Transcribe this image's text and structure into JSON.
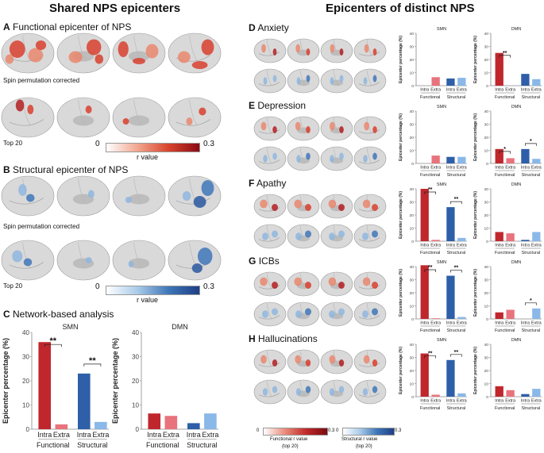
{
  "headers": {
    "left": "Shared NPS epicenters",
    "right": "Epicenters of distinct NPS"
  },
  "panel_A": {
    "letter": "A",
    "title": "Functional epicenter of NPS",
    "note1": "Spin permutation corrected",
    "note2": "Top 20"
  },
  "panel_B": {
    "letter": "B",
    "title": "Structural epicenter of NPS",
    "note1": "Spin permutation corrected",
    "note2": "Top 20"
  },
  "panel_C": {
    "letter": "C",
    "title": "Network-based analysis"
  },
  "colorbar_func": {
    "min": "0",
    "max": "0.3",
    "label": "r value"
  },
  "colorbar_struct": {
    "min": "0",
    "max": "0.3",
    "label": "r value"
  },
  "bottom_colorbars": {
    "func": {
      "min": "0",
      "max": "0.3",
      "label1": "Functional r value",
      "label2": "(top 20)"
    },
    "struct": {
      "min": "0",
      "max": "0.3",
      "label1": "Structural r value",
      "label2": "(top 20)"
    }
  },
  "colors": {
    "func_intra": "#c0272d",
    "func_extra": "#e8737d",
    "struct_intra": "#2e5fa8",
    "struct_extra": "#8ab8e8",
    "brain": "#d9d9d9"
  },
  "symptoms": [
    {
      "letter": "D",
      "name": "Anxiety"
    },
    {
      "letter": "E",
      "name": "Depression"
    },
    {
      "letter": "F",
      "name": "Apathy"
    },
    {
      "letter": "G",
      "name": "ICBs"
    },
    {
      "letter": "H",
      "name": "Hallucinations"
    }
  ],
  "chart_data": [
    {
      "id": "C-SMN",
      "type": "bar",
      "title": "SMN",
      "ylabel": "Epicenter percentage (%)",
      "ylim": [
        0,
        40
      ],
      "yticks": [
        "0",
        "10",
        "20",
        "30",
        "40"
      ],
      "categories": [
        "Intra",
        "Extra",
        "Intra",
        "Extra"
      ],
      "groups": [
        "Functional",
        "Structural"
      ],
      "values": [
        36,
        2,
        23,
        3
      ],
      "sig": [
        {
          "from": 0,
          "to": 1,
          "label": "**"
        },
        {
          "from": 2,
          "to": 3,
          "label": "**"
        }
      ]
    },
    {
      "id": "C-DMN",
      "type": "bar",
      "title": "DMN",
      "ylabel": "Epicenter percentage (%)",
      "ylim": [
        0,
        40
      ],
      "yticks": [
        "0",
        "10",
        "20",
        "30",
        "40"
      ],
      "categories": [
        "Intra",
        "Extra",
        "Intra",
        "Extra"
      ],
      "groups": [
        "Functional",
        "Structural"
      ],
      "values": [
        6.5,
        5.5,
        2.5,
        6.5
      ],
      "sig": []
    },
    {
      "id": "D-SMN",
      "type": "bar",
      "title": "SMN",
      "ylabel": "Epicenter percentage (%)",
      "ylim": [
        0,
        40
      ],
      "yticks": [
        "0",
        "10",
        "20",
        "30",
        "40"
      ],
      "categories": [
        "Intra",
        "Extra",
        "Intra",
        "Extra"
      ],
      "groups": [
        "Functional",
        "Structural"
      ],
      "values": [
        0,
        6.5,
        5.5,
        6
      ],
      "sig": []
    },
    {
      "id": "D-DMN",
      "type": "bar",
      "title": "DMN",
      "ylabel": "Epicenter percentage (%)",
      "ylim": [
        0,
        40
      ],
      "yticks": [
        "0",
        "10",
        "20",
        "30",
        "40"
      ],
      "categories": [
        "Intra",
        "Extra",
        "Intra",
        "Extra"
      ],
      "groups": [
        "Functional",
        "Structural"
      ],
      "values": [
        25,
        0,
        9,
        5
      ],
      "sig": [
        {
          "from": 0,
          "to": 1,
          "label": "**"
        }
      ]
    },
    {
      "id": "E-SMN",
      "type": "bar",
      "title": "SMN",
      "ylabel": "Epicenter percentage (%)",
      "ylim": [
        0,
        40
      ],
      "yticks": [
        "0",
        "10",
        "20",
        "30",
        "40"
      ],
      "categories": [
        "Intra",
        "Extra",
        "Intra",
        "Extra"
      ],
      "groups": [
        "Functional",
        "Structural"
      ],
      "values": [
        0,
        6,
        5,
        5
      ],
      "sig": []
    },
    {
      "id": "E-DMN",
      "type": "bar",
      "title": "DMN",
      "ylabel": "Epicenter percentage (%)",
      "ylim": [
        0,
        40
      ],
      "yticks": [
        "0",
        "10",
        "20",
        "30",
        "40"
      ],
      "categories": [
        "Intra",
        "Extra",
        "Intra",
        "Extra"
      ],
      "groups": [
        "Functional",
        "Structural"
      ],
      "values": [
        11,
        4,
        11,
        3.5
      ],
      "sig": [
        {
          "from": 0,
          "to": 1,
          "label": "*"
        },
        {
          "from": 2,
          "to": 3,
          "label": "*"
        }
      ]
    },
    {
      "id": "F-SMN",
      "type": "bar",
      "title": "SMN",
      "ylabel": "Epicenter percentage (%)",
      "ylim": [
        0,
        40
      ],
      "yticks": [
        "0",
        "10",
        "20",
        "30",
        "40"
      ],
      "categories": [
        "Intra",
        "Extra",
        "Intra",
        "Extra"
      ],
      "groups": [
        "Functional",
        "Structural"
      ],
      "values": [
        40,
        1,
        26,
        2.5
      ],
      "sig": [
        {
          "from": 0,
          "to": 1,
          "label": "**"
        },
        {
          "from": 2,
          "to": 3,
          "label": "**"
        }
      ]
    },
    {
      "id": "F-DMN",
      "type": "bar",
      "title": "DMN",
      "ylabel": "Epicenter percentage (%)",
      "ylim": [
        0,
        40
      ],
      "yticks": [
        "0",
        "10",
        "20",
        "30",
        "40"
      ],
      "categories": [
        "Intra",
        "Extra",
        "Intra",
        "Extra"
      ],
      "groups": [
        "Functional",
        "Structural"
      ],
      "values": [
        7,
        6,
        1,
        7
      ],
      "sig": []
    },
    {
      "id": "G-SMN",
      "type": "bar",
      "title": "SMN",
      "ylabel": "Epicenter percentage (%)",
      "ylim": [
        0,
        40
      ],
      "yticks": [
        "0",
        "10",
        "20",
        "30",
        "40"
      ],
      "categories": [
        "Intra",
        "Extra",
        "Intra",
        "Extra"
      ],
      "groups": [
        "Functional",
        "Structural"
      ],
      "values": [
        41,
        0.5,
        33,
        1.5
      ],
      "sig": [
        {
          "from": 0,
          "to": 1,
          "label": "**"
        },
        {
          "from": 2,
          "to": 3,
          "label": "**"
        }
      ]
    },
    {
      "id": "G-DMN",
      "type": "bar",
      "title": "DMN",
      "ylabel": "Epicenter percentage (%)",
      "ylim": [
        0,
        40
      ],
      "yticks": [
        "0",
        "10",
        "20",
        "30",
        "40"
      ],
      "categories": [
        "Intra",
        "Extra",
        "Intra",
        "Extra"
      ],
      "groups": [
        "Functional",
        "Structural"
      ],
      "values": [
        5,
        7,
        0,
        8
      ],
      "sig": [
        {
          "from": 2,
          "to": 3,
          "label": "*"
        }
      ]
    },
    {
      "id": "H-SMN",
      "type": "bar",
      "title": "SMN",
      "ylabel": "Epicenter percentage (%)",
      "ylim": [
        0,
        40
      ],
      "yticks": [
        "0",
        "10",
        "20",
        "30",
        "40"
      ],
      "categories": [
        "Intra",
        "Extra",
        "Intra",
        "Extra"
      ],
      "groups": [
        "Functional",
        "Structural"
      ],
      "values": [
        33,
        1.5,
        28,
        2.5
      ],
      "sig": [
        {
          "from": 0,
          "to": 1,
          "label": "**"
        },
        {
          "from": 2,
          "to": 3,
          "label": "**"
        }
      ]
    },
    {
      "id": "H-DMN",
      "type": "bar",
      "title": "DMN",
      "ylabel": "Epicenter percentage (%)",
      "ylim": [
        0,
        40
      ],
      "yticks": [
        "0",
        "10",
        "20",
        "30",
        "40"
      ],
      "categories": [
        "Intra",
        "Extra",
        "Intra",
        "Extra"
      ],
      "groups": [
        "Functional",
        "Structural"
      ],
      "values": [
        8,
        5,
        2,
        6
      ],
      "sig": []
    }
  ]
}
